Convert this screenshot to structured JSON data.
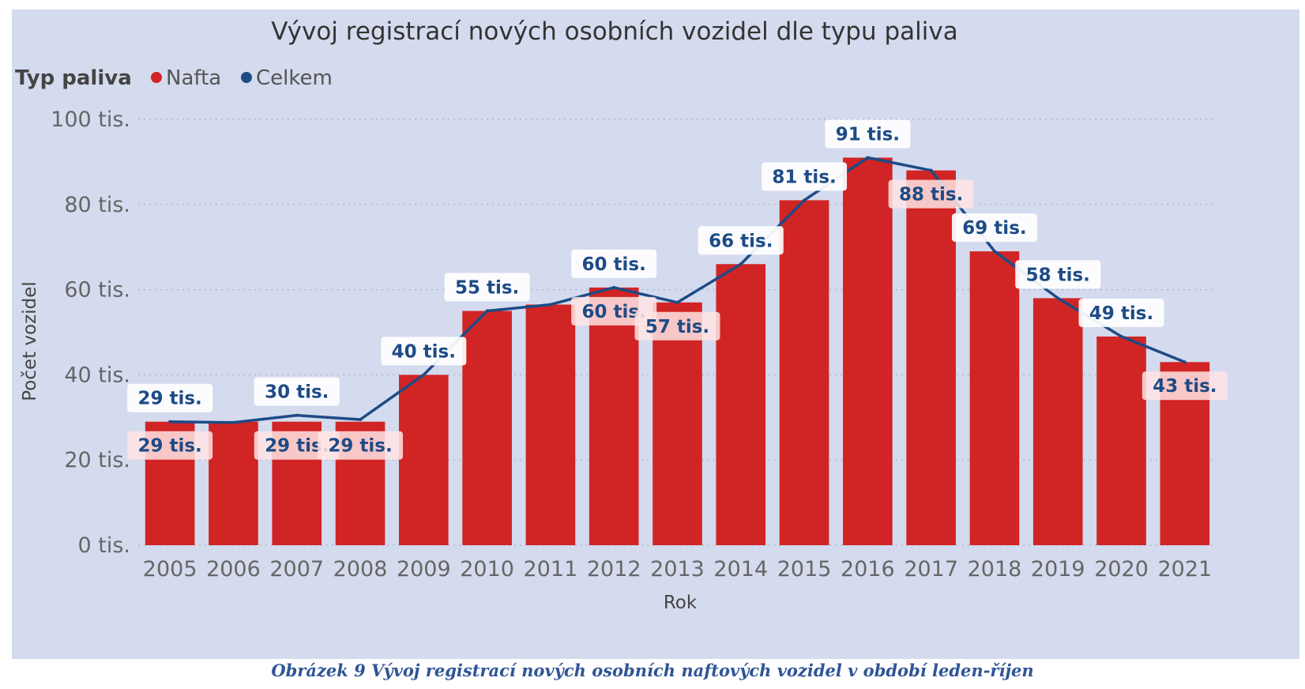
{
  "caption": "Obrázek 9 Vývoj registrací nových osobních naftových vozidel v období leden-říjen",
  "chart_data": {
    "type": "bar",
    "title": "Vývoj registrací nových osobních vozidel dle typu paliva",
    "legend": {
      "title": "Typ paliva",
      "placement": "top-left",
      "items": [
        {
          "name": "Nafta",
          "color": "#d12424"
        },
        {
          "name": "Celkem",
          "color": "#1d4b86"
        }
      ]
    },
    "xlabel": "Rok",
    "ylabel": "Počet vozidel",
    "ylim": [
      0,
      100
    ],
    "y_ticks": [
      {
        "value": 0,
        "label": "0 tis."
      },
      {
        "value": 20,
        "label": "20 tis."
      },
      {
        "value": 40,
        "label": "40 tis."
      },
      {
        "value": 60,
        "label": "60 tis."
      },
      {
        "value": 80,
        "label": "80 tis."
      },
      {
        "value": 100,
        "label": "100 tis."
      }
    ],
    "grid": "horizontal dotted",
    "categories": [
      "2005",
      "2006",
      "2007",
      "2008",
      "2009",
      "2010",
      "2011",
      "2012",
      "2013",
      "2014",
      "2015",
      "2016",
      "2017",
      "2018",
      "2019",
      "2020",
      "2021"
    ],
    "series": [
      {
        "name": "Nafta",
        "type": "bar",
        "color": "#d12424",
        "values": [
          29,
          29,
          29,
          29,
          40,
          55,
          56.5,
          60.5,
          57,
          66,
          81,
          91,
          88,
          69,
          58,
          49,
          43
        ],
        "labels": [
          "29 tis.",
          null,
          "29 tis.",
          "29 tis.",
          null,
          null,
          null,
          "60 tis.",
          "57 tis.",
          null,
          null,
          null,
          "88 tis.",
          null,
          null,
          null,
          "43 tis."
        ]
      },
      {
        "name": "Celkem",
        "type": "line",
        "color": "#1d4b86",
        "values": [
          29,
          28.8,
          30.5,
          29.5,
          40,
          55,
          56.5,
          60.5,
          57,
          66,
          81,
          91,
          88,
          69,
          58,
          49,
          43
        ],
        "labels": [
          "29 tis.",
          null,
          "30 tis.",
          null,
          "40 tis.",
          "55 tis.",
          null,
          "60 tis.",
          null,
          "66 tis.",
          "81 tis.",
          "91 tis.",
          null,
          "69 tis.",
          "58 tis.",
          "49 tis.",
          null
        ]
      }
    ]
  }
}
